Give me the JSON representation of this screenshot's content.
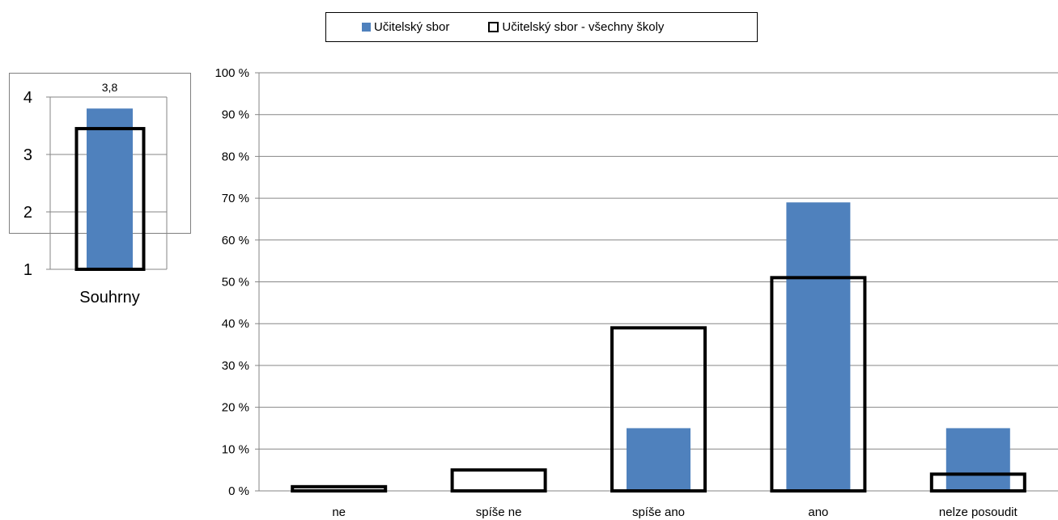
{
  "legend": {
    "items": [
      {
        "label": "Učitelský sbor",
        "style": "filled",
        "color": "#4f81bd"
      },
      {
        "label": "Učitelský sbor - všechny školy",
        "style": "outline",
        "color": "#000000"
      }
    ]
  },
  "chart_data": [
    {
      "type": "bar",
      "categories": [
        "Souhrny"
      ],
      "series": [
        {
          "name": "Učitelský sbor",
          "values": [
            3.8
          ],
          "data_labels": [
            "3,8"
          ]
        },
        {
          "name": "Učitelský sbor - všechny školy",
          "values": [
            3.45
          ]
        }
      ],
      "ylim": [
        1,
        4
      ],
      "yticks": [
        "1",
        "2",
        "3",
        "4"
      ],
      "grid": true
    },
    {
      "type": "bar",
      "categories": [
        "ne",
        "spíše ne",
        "spíše ano",
        "ano",
        "nelze posoudit"
      ],
      "series": [
        {
          "name": "Učitelský sbor",
          "values": [
            0,
            0,
            15,
            69,
            15
          ]
        },
        {
          "name": "Učitelský sbor - všechny školy",
          "values": [
            1,
            5,
            39,
            51,
            4
          ]
        }
      ],
      "ylim": [
        0,
        100
      ],
      "yticks": [
        "0 %",
        "10 %",
        "20 %",
        "30 %",
        "40 %",
        "50 %",
        "60 %",
        "70 %",
        "80 %",
        "90 %",
        "100 %"
      ],
      "grid": true,
      "legend_position": "top"
    }
  ]
}
